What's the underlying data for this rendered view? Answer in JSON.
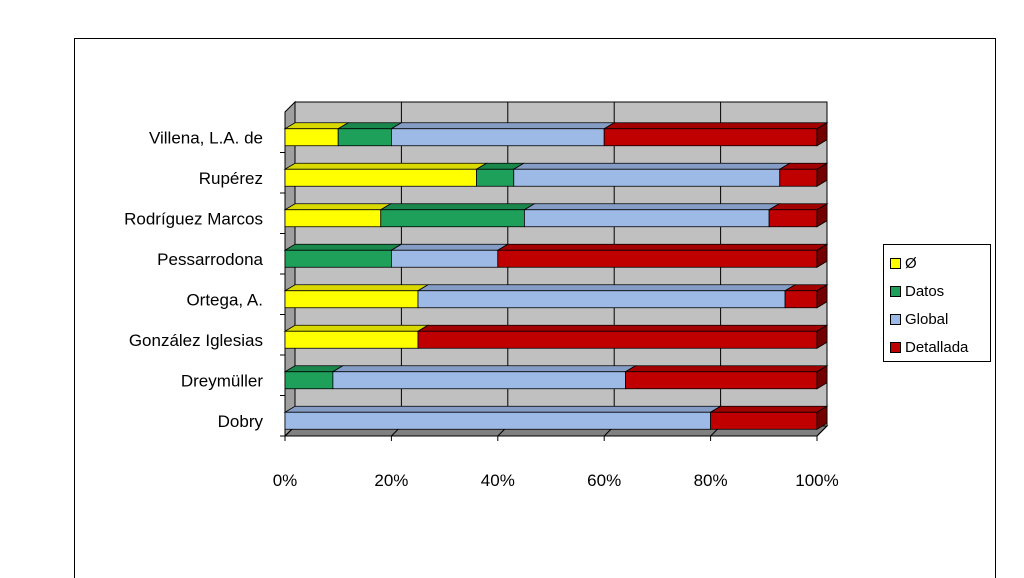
{
  "chart_data": {
    "type": "bar",
    "orientation": "horizontal",
    "stacked": "percent",
    "categories": [
      "Villena, L.A. de",
      "Rupérez",
      "Rodríguez Marcos",
      "Pessarrodona",
      "Ortega, A.",
      "González Iglesias",
      "Dreymüller",
      "Dobry"
    ],
    "series": [
      {
        "name": "Ø",
        "color": "#ffff00",
        "values": [
          10,
          36,
          18,
          0,
          25,
          25,
          0,
          0
        ]
      },
      {
        "name": "Datos",
        "color": "#1ea05a",
        "values": [
          10,
          7,
          27,
          20,
          0,
          0,
          9,
          0
        ]
      },
      {
        "name": "Global",
        "color": "#9db9e6",
        "values": [
          40,
          50,
          46,
          20,
          69,
          0,
          55,
          80
        ]
      },
      {
        "name": "Detallada",
        "color": "#c00000",
        "values": [
          40,
          7,
          9,
          60,
          6,
          75,
          36,
          20
        ]
      }
    ],
    "xlim": [
      0,
      100
    ],
    "xticks": [
      "0%",
      "20%",
      "40%",
      "60%",
      "80%",
      "100%"
    ],
    "grid": true,
    "legend_position": "right",
    "plot_background": "#c0c0c0"
  }
}
